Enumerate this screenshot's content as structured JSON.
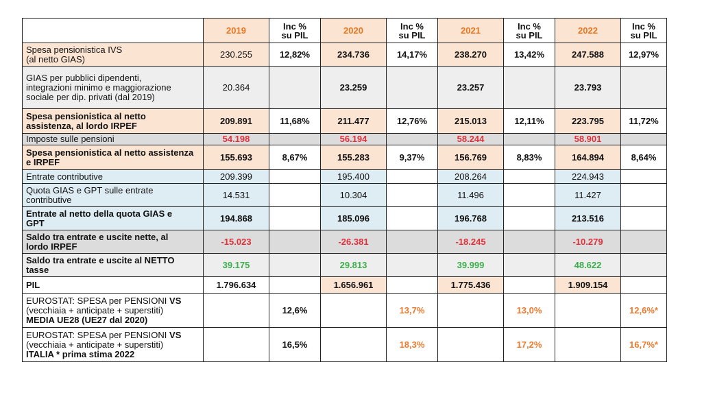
{
  "header": {
    "label": "",
    "y2019": "2019",
    "y2020": "2020",
    "y2021": "2021",
    "y2022": "2022",
    "inc_line1": "Inc %",
    "inc_line2": "su PIL"
  },
  "rows": [
    {
      "label_line1": "Spesa pensionistica IVS",
      "label_line2": "(al netto GIAS)",
      "v2019": "230.255",
      "i2019": "12,82%",
      "v2020": "234.736",
      "i2020": "14,17%",
      "v2021": "238.270",
      "i2021": "13,42%",
      "v2022": "247.588",
      "i2022": "12,97%"
    },
    {
      "label_line1": "GIAS per pubblici dipendenti,",
      "label_line2": "integrazioni minimo  e maggiorazione",
      "label_line3": "sociale per dip.  privati (dal 2019)",
      "v2019": "20.364",
      "i2019": "",
      "v2020": "23.259",
      "i2020": "",
      "v2021": "23.257",
      "i2021": "",
      "v2022": "23.793",
      "i2022": ""
    },
    {
      "label_line1": "Spesa pensionistica al netto",
      "label_line2": "assistenza, al lordo IRPEF",
      "v2019": "209.891",
      "i2019": "11,68%",
      "v2020": "211.477",
      "i2020": "12,76%",
      "v2021": "215.013",
      "i2021": "12,11%",
      "v2022": "223.795",
      "i2022": "11,72%"
    },
    {
      "label_line1": "Imposte sulle pensioni",
      "v2019": "54.198",
      "i2019": "",
      "v2020": "56.194",
      "i2020": "",
      "v2021": "58.244",
      "i2021": "",
      "v2022": "58.901",
      "i2022": ""
    },
    {
      "label_line1": "Spesa pensionistica al netto assistenza",
      "label_line2": "e IRPEF",
      "v2019": "155.693",
      "i2019": "8,67%",
      "v2020": "155.283",
      "i2020": "9,37%",
      "v2021": "156.769",
      "i2021": "8,83%",
      "v2022": "164.894",
      "i2022": "8,64%"
    },
    {
      "label_line1": "Entrate contributive",
      "v2019": "209.399",
      "i2019": "",
      "v2020": "195.400",
      "i2020": "",
      "v2021": "208.264",
      "i2021": "",
      "v2022": "224.943",
      "i2022": ""
    },
    {
      "label_line1": "Quota GIAS e GPT sulle entrate",
      "label_line2": "contributive",
      "v2019": "14.531",
      "i2019": "",
      "v2020": "10.304",
      "i2020": "",
      "v2021": "11.496",
      "i2021": "",
      "v2022": "11.427",
      "i2022": ""
    },
    {
      "label_line1": "Entrate al netto della quota GIAS e",
      "label_line2": "GPT",
      "v2019": "194.868",
      "i2019": "",
      "v2020": "185.096",
      "i2020": "",
      "v2021": "196.768",
      "i2021": "",
      "v2022": "213.516",
      "i2022": ""
    },
    {
      "label_line1": "Saldo tra entrate e uscite nette, al",
      "label_line2": "lordo IRPEF",
      "v2019": "-15.023",
      "i2019": "",
      "v2020": "-26.381",
      "i2020": "",
      "v2021": "-18.245",
      "i2021": "",
      "v2022": "-10.279",
      "i2022": ""
    },
    {
      "label_line1": "Saldo tra entrate e uscite al NETTO",
      "label_line2": "tasse",
      "v2019": "39.175",
      "i2019": "",
      "v2020": "29.813",
      "i2020": "",
      "v2021": "39.999",
      "i2021": "",
      "v2022": "48.622",
      "i2022": ""
    },
    {
      "label_line1": "PIL",
      "v2019": "1.796.634",
      "i2019": "",
      "v2020": "1.656.961",
      "i2020": "",
      "v2021": "1.775.436",
      "i2021": "",
      "v2022": "1.909.154",
      "i2022": ""
    },
    {
      "label_line1a": "EUROSTAT: SPESA per PENSIONI ",
      "label_line1b": "VS",
      "label_line2": "(vecchiaia + anticipate + superstiti)",
      "label_line3": "MEDIA UE28 (UE27 dal 2020)",
      "v2019": "",
      "i2019": "12,6%",
      "v2020": "",
      "i2020": "13,7%",
      "v2021": "",
      "i2021": "13,0%",
      "v2022": "",
      "i2022": "12,6%*"
    },
    {
      "label_line1a": "EUROSTAT: SPESA per PENSIONI ",
      "label_line1b": "VS",
      "label_line2": "(vecchiaia + anticipate + superstiti)",
      "label_line3": "ITALIA * prima stima 2022",
      "v2019": "",
      "i2019": "16,5%",
      "v2020": "",
      "i2020": "18,3%",
      "v2021": "",
      "i2021": "17,2%",
      "v2022": "",
      "i2022": "16,7%*"
    }
  ],
  "colors": {
    "year_header": "#e87722",
    "negative": "#e0303a",
    "positive_saldo": "#3cae4b",
    "eurostat_values": "#ee7a2d",
    "highlight_peach": "#fbe4d2",
    "highlight_blue": "#deecf3",
    "row_grey": "#eeeeee",
    "row_dark_grey": "#dcdcdc"
  }
}
